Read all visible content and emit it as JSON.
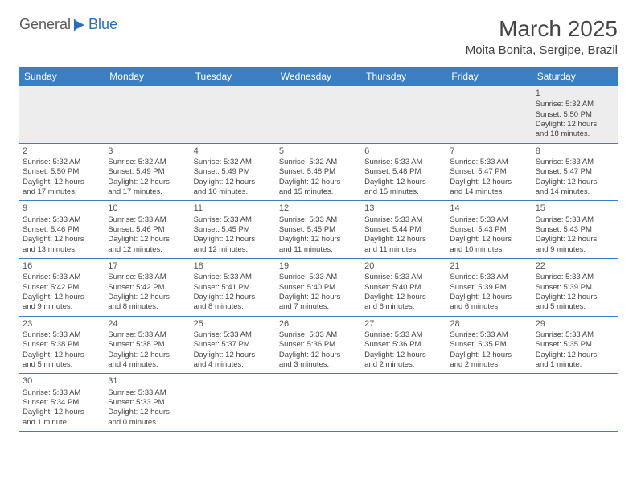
{
  "logo": {
    "part1": "General",
    "part2": "Blue"
  },
  "header": {
    "month_title": "March 2025",
    "location": "Moita Bonita, Sergipe, Brazil"
  },
  "weekdays": [
    "Sunday",
    "Monday",
    "Tuesday",
    "Wednesday",
    "Thursday",
    "Friday",
    "Saturday"
  ],
  "style": {
    "header_bg": "#3b7ec2",
    "header_fg": "#ffffff",
    "row_border": "#3b7ec2",
    "first_row_bg": "#ededed",
    "text_color": "#444444"
  },
  "weeks": [
    [
      null,
      null,
      null,
      null,
      null,
      null,
      {
        "n": "1",
        "sunrise": "Sunrise: 5:32 AM",
        "sunset": "Sunset: 5:50 PM",
        "dl1": "Daylight: 12 hours",
        "dl2": "and 18 minutes."
      }
    ],
    [
      {
        "n": "2",
        "sunrise": "Sunrise: 5:32 AM",
        "sunset": "Sunset: 5:50 PM",
        "dl1": "Daylight: 12 hours",
        "dl2": "and 17 minutes."
      },
      {
        "n": "3",
        "sunrise": "Sunrise: 5:32 AM",
        "sunset": "Sunset: 5:49 PM",
        "dl1": "Daylight: 12 hours",
        "dl2": "and 17 minutes."
      },
      {
        "n": "4",
        "sunrise": "Sunrise: 5:32 AM",
        "sunset": "Sunset: 5:49 PM",
        "dl1": "Daylight: 12 hours",
        "dl2": "and 16 minutes."
      },
      {
        "n": "5",
        "sunrise": "Sunrise: 5:32 AM",
        "sunset": "Sunset: 5:48 PM",
        "dl1": "Daylight: 12 hours",
        "dl2": "and 15 minutes."
      },
      {
        "n": "6",
        "sunrise": "Sunrise: 5:33 AM",
        "sunset": "Sunset: 5:48 PM",
        "dl1": "Daylight: 12 hours",
        "dl2": "and 15 minutes."
      },
      {
        "n": "7",
        "sunrise": "Sunrise: 5:33 AM",
        "sunset": "Sunset: 5:47 PM",
        "dl1": "Daylight: 12 hours",
        "dl2": "and 14 minutes."
      },
      {
        "n": "8",
        "sunrise": "Sunrise: 5:33 AM",
        "sunset": "Sunset: 5:47 PM",
        "dl1": "Daylight: 12 hours",
        "dl2": "and 14 minutes."
      }
    ],
    [
      {
        "n": "9",
        "sunrise": "Sunrise: 5:33 AM",
        "sunset": "Sunset: 5:46 PM",
        "dl1": "Daylight: 12 hours",
        "dl2": "and 13 minutes."
      },
      {
        "n": "10",
        "sunrise": "Sunrise: 5:33 AM",
        "sunset": "Sunset: 5:46 PM",
        "dl1": "Daylight: 12 hours",
        "dl2": "and 12 minutes."
      },
      {
        "n": "11",
        "sunrise": "Sunrise: 5:33 AM",
        "sunset": "Sunset: 5:45 PM",
        "dl1": "Daylight: 12 hours",
        "dl2": "and 12 minutes."
      },
      {
        "n": "12",
        "sunrise": "Sunrise: 5:33 AM",
        "sunset": "Sunset: 5:45 PM",
        "dl1": "Daylight: 12 hours",
        "dl2": "and 11 minutes."
      },
      {
        "n": "13",
        "sunrise": "Sunrise: 5:33 AM",
        "sunset": "Sunset: 5:44 PM",
        "dl1": "Daylight: 12 hours",
        "dl2": "and 11 minutes."
      },
      {
        "n": "14",
        "sunrise": "Sunrise: 5:33 AM",
        "sunset": "Sunset: 5:43 PM",
        "dl1": "Daylight: 12 hours",
        "dl2": "and 10 minutes."
      },
      {
        "n": "15",
        "sunrise": "Sunrise: 5:33 AM",
        "sunset": "Sunset: 5:43 PM",
        "dl1": "Daylight: 12 hours",
        "dl2": "and 9 minutes."
      }
    ],
    [
      {
        "n": "16",
        "sunrise": "Sunrise: 5:33 AM",
        "sunset": "Sunset: 5:42 PM",
        "dl1": "Daylight: 12 hours",
        "dl2": "and 9 minutes."
      },
      {
        "n": "17",
        "sunrise": "Sunrise: 5:33 AM",
        "sunset": "Sunset: 5:42 PM",
        "dl1": "Daylight: 12 hours",
        "dl2": "and 8 minutes."
      },
      {
        "n": "18",
        "sunrise": "Sunrise: 5:33 AM",
        "sunset": "Sunset: 5:41 PM",
        "dl1": "Daylight: 12 hours",
        "dl2": "and 8 minutes."
      },
      {
        "n": "19",
        "sunrise": "Sunrise: 5:33 AM",
        "sunset": "Sunset: 5:40 PM",
        "dl1": "Daylight: 12 hours",
        "dl2": "and 7 minutes."
      },
      {
        "n": "20",
        "sunrise": "Sunrise: 5:33 AM",
        "sunset": "Sunset: 5:40 PM",
        "dl1": "Daylight: 12 hours",
        "dl2": "and 6 minutes."
      },
      {
        "n": "21",
        "sunrise": "Sunrise: 5:33 AM",
        "sunset": "Sunset: 5:39 PM",
        "dl1": "Daylight: 12 hours",
        "dl2": "and 6 minutes."
      },
      {
        "n": "22",
        "sunrise": "Sunrise: 5:33 AM",
        "sunset": "Sunset: 5:39 PM",
        "dl1": "Daylight: 12 hours",
        "dl2": "and 5 minutes."
      }
    ],
    [
      {
        "n": "23",
        "sunrise": "Sunrise: 5:33 AM",
        "sunset": "Sunset: 5:38 PM",
        "dl1": "Daylight: 12 hours",
        "dl2": "and 5 minutes."
      },
      {
        "n": "24",
        "sunrise": "Sunrise: 5:33 AM",
        "sunset": "Sunset: 5:38 PM",
        "dl1": "Daylight: 12 hours",
        "dl2": "and 4 minutes."
      },
      {
        "n": "25",
        "sunrise": "Sunrise: 5:33 AM",
        "sunset": "Sunset: 5:37 PM",
        "dl1": "Daylight: 12 hours",
        "dl2": "and 4 minutes."
      },
      {
        "n": "26",
        "sunrise": "Sunrise: 5:33 AM",
        "sunset": "Sunset: 5:36 PM",
        "dl1": "Daylight: 12 hours",
        "dl2": "and 3 minutes."
      },
      {
        "n": "27",
        "sunrise": "Sunrise: 5:33 AM",
        "sunset": "Sunset: 5:36 PM",
        "dl1": "Daylight: 12 hours",
        "dl2": "and 2 minutes."
      },
      {
        "n": "28",
        "sunrise": "Sunrise: 5:33 AM",
        "sunset": "Sunset: 5:35 PM",
        "dl1": "Daylight: 12 hours",
        "dl2": "and 2 minutes."
      },
      {
        "n": "29",
        "sunrise": "Sunrise: 5:33 AM",
        "sunset": "Sunset: 5:35 PM",
        "dl1": "Daylight: 12 hours",
        "dl2": "and 1 minute."
      }
    ],
    [
      {
        "n": "30",
        "sunrise": "Sunrise: 5:33 AM",
        "sunset": "Sunset: 5:34 PM",
        "dl1": "Daylight: 12 hours",
        "dl2": "and 1 minute."
      },
      {
        "n": "31",
        "sunrise": "Sunrise: 5:33 AM",
        "sunset": "Sunset: 5:33 PM",
        "dl1": "Daylight: 12 hours",
        "dl2": "and 0 minutes."
      },
      null,
      null,
      null,
      null,
      null
    ]
  ]
}
